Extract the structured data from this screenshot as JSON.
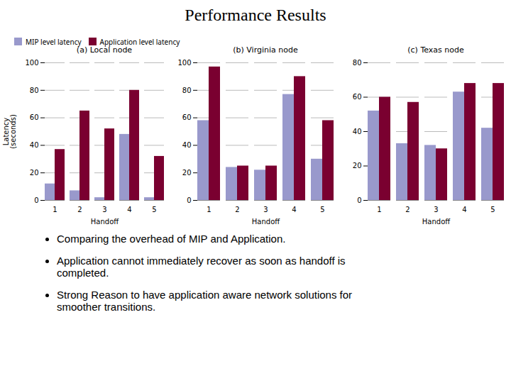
{
  "title": "Performance Results",
  "annotations": [
    "Comparing the overhead of MIP and Application.",
    "Application cannot immediately recover as soon as handoff is\ncompleted.",
    "Strong Reason to have application aware network solutions for\nsmoother transitions."
  ],
  "chart_data": [
    {
      "type": "bar",
      "title": "(a) Local node",
      "xlabel": "Handoff",
      "ylabel": "Latency\n(seconds)",
      "categories": [
        "1",
        "2",
        "3",
        "4",
        "5"
      ],
      "series": [
        {
          "name": "MIP level latency",
          "color": "#9999cc",
          "values": [
            12,
            7,
            2,
            48,
            2
          ]
        },
        {
          "name": "Application level latency",
          "color": "#7a0030",
          "values": [
            37,
            65,
            52,
            80,
            32
          ]
        }
      ],
      "ylim": [
        0,
        100
      ],
      "yticks": [
        0,
        20,
        40,
        60,
        80,
        100
      ],
      "grid": true,
      "legend": "upper left"
    },
    {
      "type": "bar",
      "title": "(b) Virginia node",
      "xlabel": "Handoff",
      "categories": [
        "1",
        "2",
        "3",
        "4",
        "5"
      ],
      "series": [
        {
          "name": "MIP level latency",
          "color": "#9999cc",
          "values": [
            58,
            24,
            22,
            77,
            30
          ]
        },
        {
          "name": "Application level latency",
          "color": "#7a0030",
          "values": [
            97,
            25,
            25,
            90,
            58
          ]
        }
      ],
      "ylim": [
        0,
        100
      ],
      "yticks": [
        0,
        20,
        40,
        60,
        80,
        100
      ],
      "grid": true
    },
    {
      "type": "bar",
      "title": "(c) Texas node",
      "xlabel": "Handoff",
      "categories": [
        "1",
        "2",
        "3",
        "4",
        "5"
      ],
      "series": [
        {
          "name": "MIP level latency",
          "color": "#9999cc",
          "values": [
            52,
            33,
            32,
            63,
            42
          ]
        },
        {
          "name": "Application level latency",
          "color": "#7a0030",
          "values": [
            60,
            57,
            30,
            68,
            68
          ]
        }
      ],
      "ylim": [
        0,
        80
      ],
      "yticks": [
        0,
        20,
        40,
        60,
        80
      ],
      "grid": true
    }
  ]
}
